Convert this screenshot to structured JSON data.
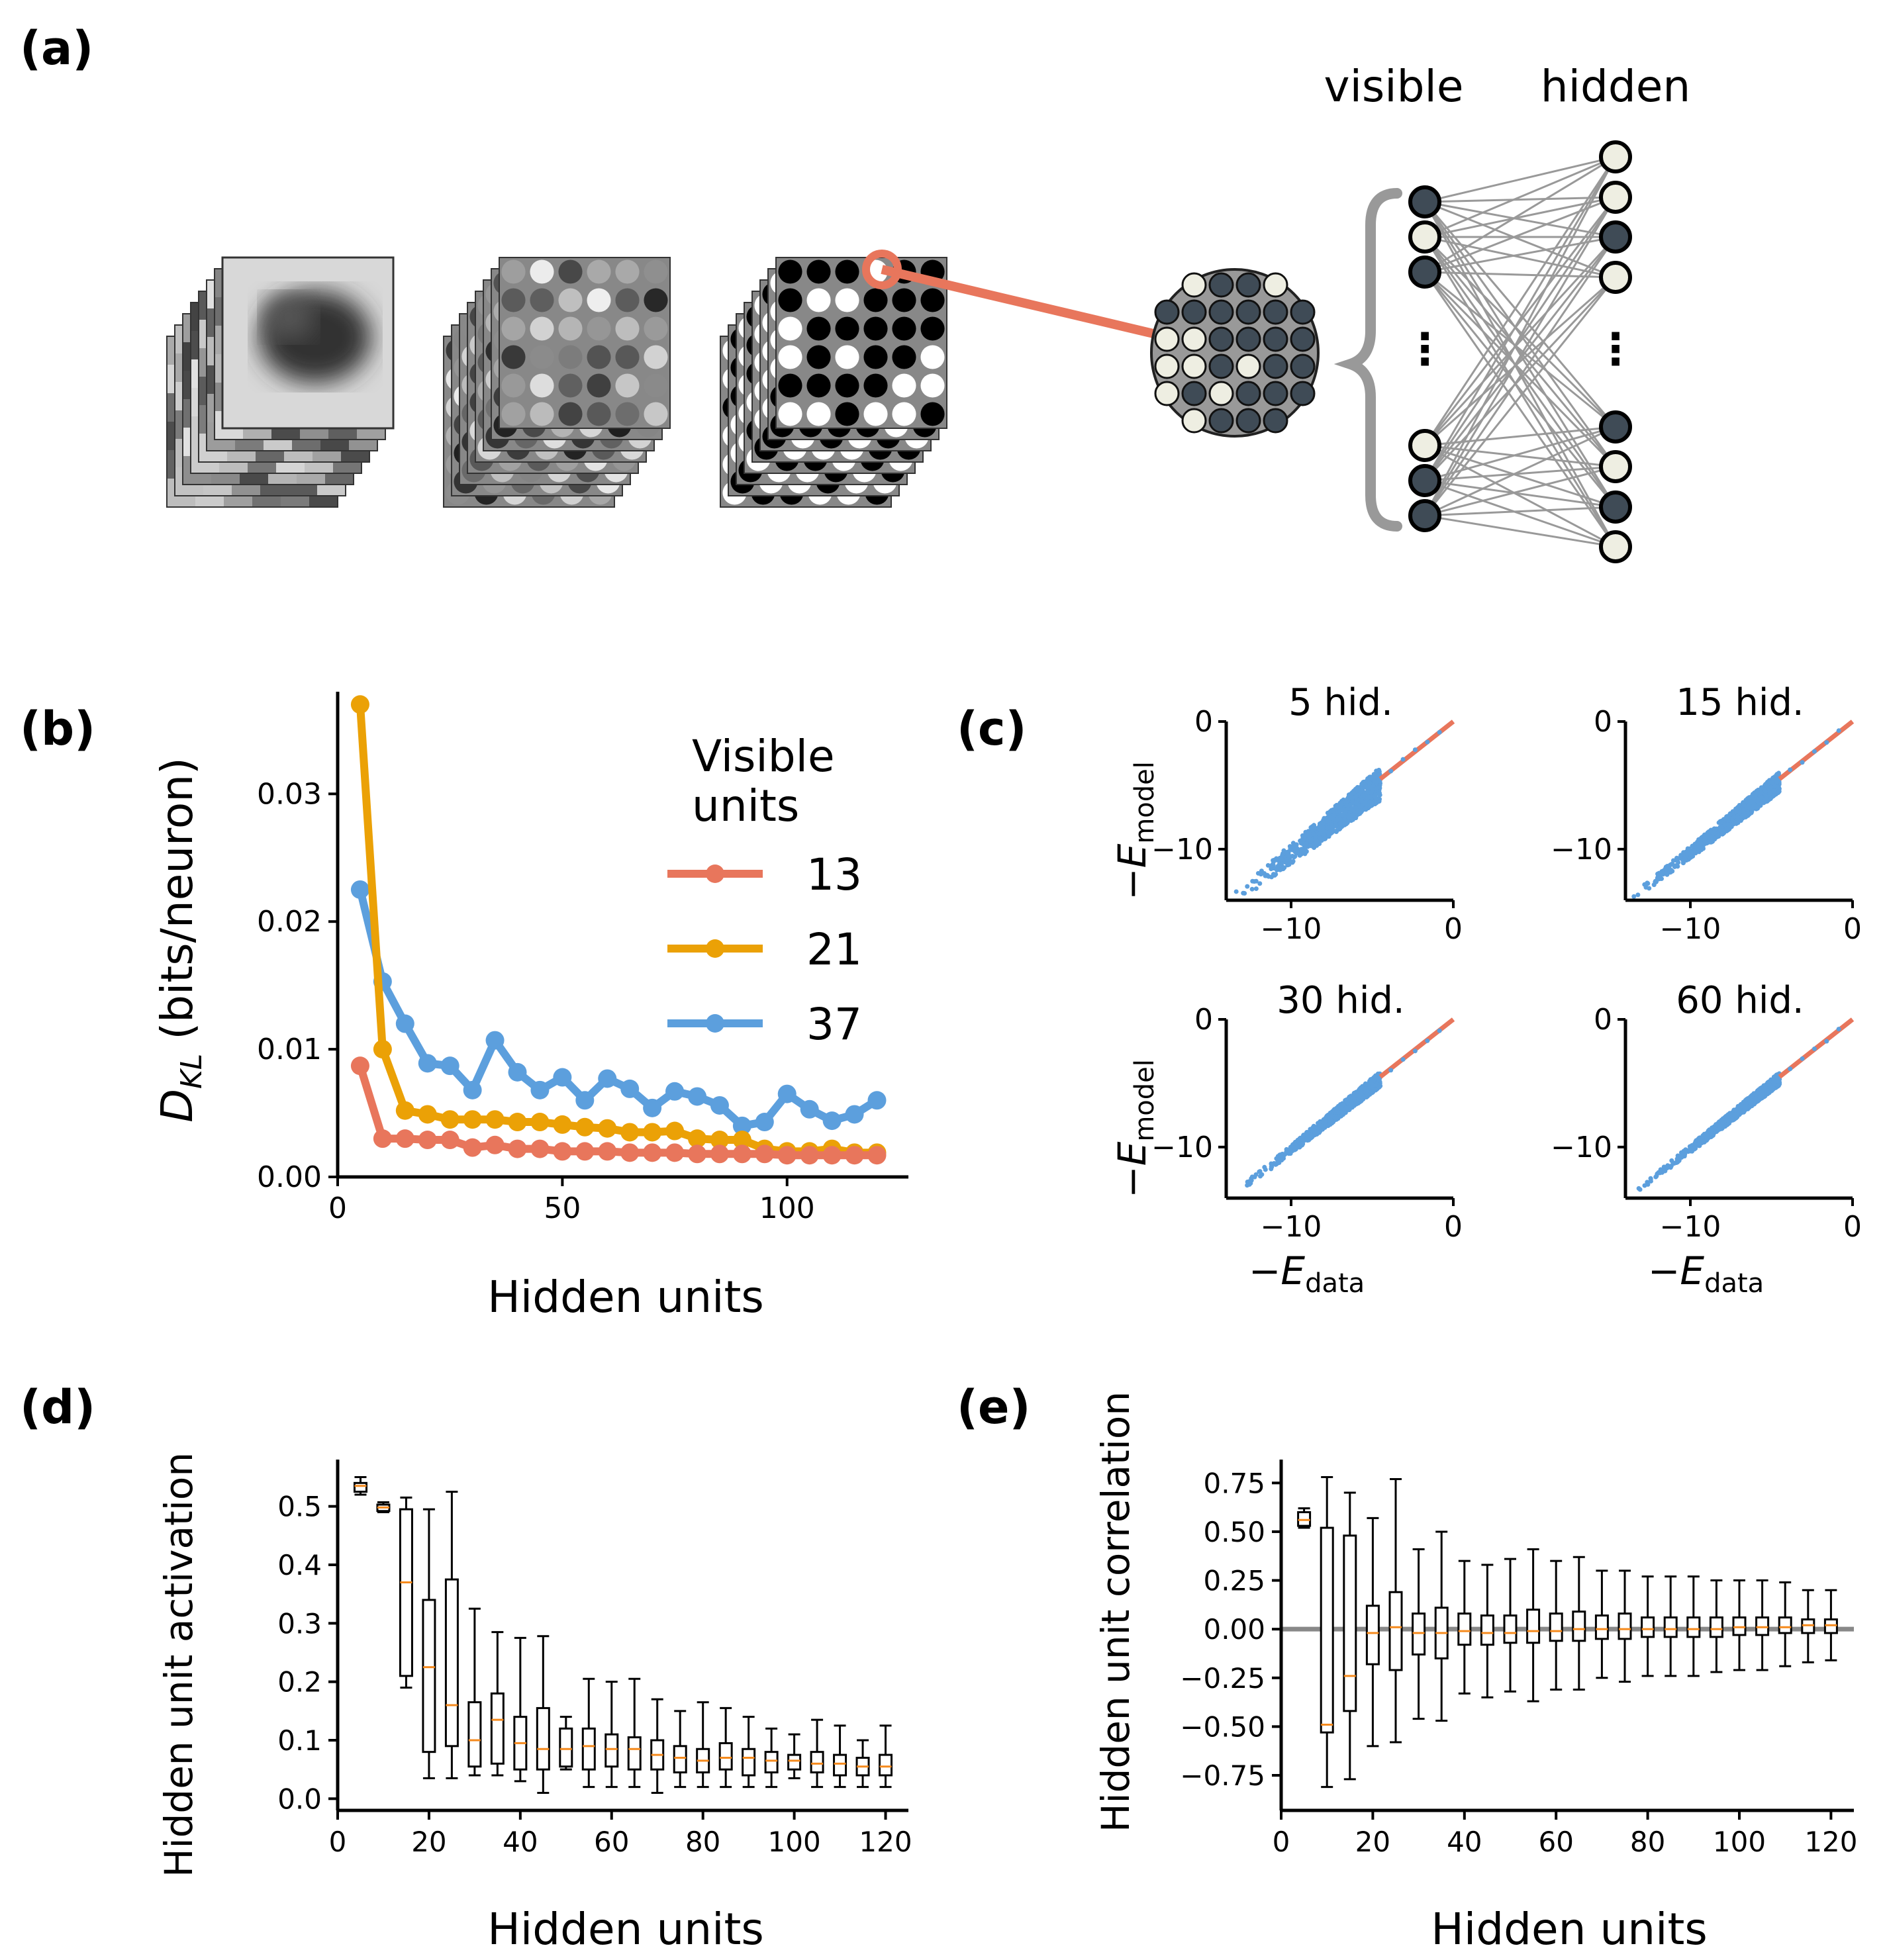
{
  "colors": {
    "red": "#e8765c",
    "orange": "#eba106",
    "blue": "#5c9fdd",
    "dark_unit": "#3f4b56",
    "light_unit": "#eeeee2",
    "grey_line": "#999999",
    "median": "#f58a1d"
  },
  "panel_a": {
    "label": "(a)",
    "visible_label": "visible",
    "hidden_label": "hidden",
    "dots": "⋮",
    "visible_units": [
      1,
      0,
      1,
      0,
      1,
      1
    ],
    "hidden_units": [
      0,
      0,
      1,
      0,
      1,
      0,
      1,
      0
    ],
    "patch_grid": [
      [
        null,
        0,
        1,
        1,
        0,
        null
      ],
      [
        1,
        1,
        1,
        1,
        1,
        1
      ],
      [
        0,
        0,
        1,
        1,
        1,
        1
      ],
      [
        0,
        0,
        1,
        0,
        1,
        1
      ],
      [
        0,
        1,
        0,
        1,
        1,
        1
      ],
      [
        null,
        0,
        1,
        1,
        1,
        null
      ]
    ]
  },
  "panel_b": {
    "label": "(b)",
    "chart_data": {
      "type": "line",
      "xlabel": "Hidden units",
      "ylabel_main": "D",
      "ylabel_sub": "KL",
      "ylabel_rest": " (bits/neuron)",
      "x": [
        5,
        10,
        15,
        20,
        25,
        30,
        35,
        40,
        45,
        50,
        55,
        60,
        65,
        70,
        75,
        80,
        85,
        90,
        95,
        100,
        105,
        110,
        115,
        120
      ],
      "series": [
        {
          "name": "13",
          "color": "#e8765c",
          "values": [
            0.0087,
            0.003,
            0.003,
            0.0029,
            0.0029,
            0.0023,
            0.0025,
            0.0022,
            0.0022,
            0.002,
            0.002,
            0.002,
            0.0019,
            0.0019,
            0.0019,
            0.0018,
            0.0018,
            0.0018,
            0.0018,
            0.0017,
            0.0017,
            0.0017,
            0.0017,
            0.0017
          ]
        },
        {
          "name": "21",
          "color": "#eba106",
          "values": [
            0.037,
            0.01,
            0.0052,
            0.0049,
            0.0045,
            0.0045,
            0.0045,
            0.0043,
            0.0043,
            0.0041,
            0.0039,
            0.0038,
            0.0035,
            0.0035,
            0.0036,
            0.003,
            0.0029,
            0.0029,
            0.0022,
            0.002,
            0.002,
            0.0022,
            0.0019,
            0.0019
          ]
        },
        {
          "name": "37",
          "color": "#5c9fdd",
          "values": [
            0.0225,
            0.0153,
            0.012,
            0.0089,
            0.0087,
            0.0068,
            0.0107,
            0.0082,
            0.0068,
            0.0078,
            0.006,
            0.0077,
            0.0069,
            0.0054,
            0.0067,
            0.0063,
            0.0056,
            0.004,
            0.0043,
            0.0065,
            0.0053,
            0.0044,
            0.0049,
            0.006
          ]
        }
      ],
      "xlim": [
        0,
        127
      ],
      "ylim": [
        0,
        0.038
      ],
      "xticks": [
        0,
        50,
        100
      ],
      "yticks": [
        0.0,
        0.01,
        0.02,
        0.03
      ],
      "ytick_labels": [
        "0.00",
        "0.01",
        "0.02",
        "0.03"
      ],
      "xtick_labels": [
        "0",
        "50",
        "100"
      ],
      "legend": {
        "title_line1": "Visible",
        "title_line2": "units",
        "placement": "top-right"
      }
    }
  },
  "panel_c": {
    "label": "(c)",
    "chart_data": {
      "type": "scatter",
      "xlabel_main": "−E",
      "xlabel_sub": "data",
      "ylabel_main": "−E",
      "ylabel_sub": "model",
      "xlim": [
        -14,
        0
      ],
      "ylim": [
        -14,
        0
      ],
      "xtick_labels": [
        "−10",
        "0"
      ],
      "ytick_labels": [
        "−10",
        "0"
      ],
      "panels": [
        {
          "title": "5 hid.",
          "spread": 1.3
        },
        {
          "title": "15 hid.",
          "spread": 0.8
        },
        {
          "title": "30 hid.",
          "spread": 0.6
        },
        {
          "title": "60 hid.",
          "spread": 0.5
        }
      ]
    }
  },
  "panel_d": {
    "label": "(d)",
    "chart_data": {
      "type": "box",
      "xlabel": "Hidden units",
      "ylabel": "Hidden unit activation",
      "xlim": [
        0,
        125
      ],
      "ylim": [
        -0.02,
        0.58
      ],
      "xticks": [
        0,
        20,
        40,
        60,
        80,
        100,
        120
      ],
      "xtick_labels": [
        "0",
        "20",
        "40",
        "60",
        "80",
        "100",
        "120"
      ],
      "yticks": [
        0.0,
        0.1,
        0.2,
        0.3,
        0.4,
        0.5
      ],
      "ytick_labels": [
        "0.0",
        "0.1",
        "0.2",
        "0.3",
        "0.4",
        "0.5"
      ],
      "boxes": [
        {
          "x": 5,
          "wlo": 0.52,
          "q1": 0.525,
          "med": 0.535,
          "q3": 0.54,
          "whi": 0.55
        },
        {
          "x": 10,
          "wlo": 0.49,
          "q1": 0.492,
          "med": 0.498,
          "q3": 0.503,
          "whi": 0.507
        },
        {
          "x": 15,
          "wlo": 0.19,
          "q1": 0.21,
          "med": 0.37,
          "q3": 0.495,
          "whi": 0.515
        },
        {
          "x": 20,
          "wlo": 0.035,
          "q1": 0.08,
          "med": 0.225,
          "q3": 0.34,
          "whi": 0.495
        },
        {
          "x": 25,
          "wlo": 0.035,
          "q1": 0.09,
          "med": 0.16,
          "q3": 0.375,
          "whi": 0.525
        },
        {
          "x": 30,
          "wlo": 0.04,
          "q1": 0.055,
          "med": 0.1,
          "q3": 0.165,
          "whi": 0.325
        },
        {
          "x": 35,
          "wlo": 0.04,
          "q1": 0.06,
          "med": 0.135,
          "q3": 0.18,
          "whi": 0.285
        },
        {
          "x": 40,
          "wlo": 0.03,
          "q1": 0.05,
          "med": 0.095,
          "q3": 0.14,
          "whi": 0.275
        },
        {
          "x": 45,
          "wlo": 0.01,
          "q1": 0.05,
          "med": 0.085,
          "q3": 0.155,
          "whi": 0.278
        },
        {
          "x": 50,
          "wlo": 0.05,
          "q1": 0.055,
          "med": 0.085,
          "q3": 0.12,
          "whi": 0.14
        },
        {
          "x": 55,
          "wlo": 0.02,
          "q1": 0.05,
          "med": 0.09,
          "q3": 0.12,
          "whi": 0.205
        },
        {
          "x": 60,
          "wlo": 0.02,
          "q1": 0.055,
          "med": 0.085,
          "q3": 0.11,
          "whi": 0.2
        },
        {
          "x": 65,
          "wlo": 0.02,
          "q1": 0.05,
          "med": 0.085,
          "q3": 0.105,
          "whi": 0.205
        },
        {
          "x": 70,
          "wlo": 0.01,
          "q1": 0.05,
          "med": 0.075,
          "q3": 0.1,
          "whi": 0.17
        },
        {
          "x": 75,
          "wlo": 0.02,
          "q1": 0.045,
          "med": 0.07,
          "q3": 0.09,
          "whi": 0.15
        },
        {
          "x": 80,
          "wlo": 0.02,
          "q1": 0.045,
          "med": 0.065,
          "q3": 0.085,
          "whi": 0.165
        },
        {
          "x": 85,
          "wlo": 0.02,
          "q1": 0.05,
          "med": 0.07,
          "q3": 0.095,
          "whi": 0.155
        },
        {
          "x": 90,
          "wlo": 0.02,
          "q1": 0.04,
          "med": 0.07,
          "q3": 0.085,
          "whi": 0.14
        },
        {
          "x": 95,
          "wlo": 0.02,
          "q1": 0.045,
          "med": 0.065,
          "q3": 0.08,
          "whi": 0.12
        },
        {
          "x": 100,
          "wlo": 0.035,
          "q1": 0.05,
          "med": 0.065,
          "q3": 0.075,
          "whi": 0.11
        },
        {
          "x": 105,
          "wlo": 0.02,
          "q1": 0.045,
          "med": 0.06,
          "q3": 0.08,
          "whi": 0.135
        },
        {
          "x": 110,
          "wlo": 0.02,
          "q1": 0.04,
          "med": 0.06,
          "q3": 0.075,
          "whi": 0.125
        },
        {
          "x": 115,
          "wlo": 0.02,
          "q1": 0.04,
          "med": 0.055,
          "q3": 0.07,
          "whi": 0.1
        },
        {
          "x": 120,
          "wlo": 0.02,
          "q1": 0.04,
          "med": 0.055,
          "q3": 0.075,
          "whi": 0.125
        }
      ]
    }
  },
  "panel_e": {
    "label": "(e)",
    "chart_data": {
      "type": "box",
      "xlabel": "Hidden units",
      "ylabel": "Hidden unit correlation",
      "xlim": [
        0,
        125
      ],
      "ylim": [
        -0.93,
        0.87
      ],
      "xticks": [
        0,
        20,
        40,
        60,
        80,
        100,
        120
      ],
      "xtick_labels": [
        "0",
        "20",
        "40",
        "60",
        "80",
        "100",
        "120"
      ],
      "yticks": [
        -0.75,
        -0.5,
        -0.25,
        0.0,
        0.25,
        0.5,
        0.75
      ],
      "ytick_labels": [
        "−0.75",
        "−0.50",
        "−0.25",
        "0.00",
        "0.25",
        "0.50",
        "0.75"
      ],
      "zero_line": 0.0,
      "boxes": [
        {
          "x": 5,
          "wlo": 0.52,
          "q1": 0.53,
          "med": 0.56,
          "q3": 0.6,
          "whi": 0.62
        },
        {
          "x": 10,
          "wlo": -0.81,
          "q1": -0.53,
          "med": -0.49,
          "q3": 0.52,
          "whi": 0.78
        },
        {
          "x": 15,
          "wlo": -0.77,
          "q1": -0.42,
          "med": -0.24,
          "q3": 0.48,
          "whi": 0.7
        },
        {
          "x": 20,
          "wlo": -0.6,
          "q1": -0.18,
          "med": -0.02,
          "q3": 0.12,
          "whi": 0.57
        },
        {
          "x": 25,
          "wlo": -0.58,
          "q1": -0.21,
          "med": 0.01,
          "q3": 0.19,
          "whi": 0.77
        },
        {
          "x": 30,
          "wlo": -0.46,
          "q1": -0.13,
          "med": -0.02,
          "q3": 0.08,
          "whi": 0.41
        },
        {
          "x": 35,
          "wlo": -0.47,
          "q1": -0.15,
          "med": -0.02,
          "q3": 0.11,
          "whi": 0.5
        },
        {
          "x": 40,
          "wlo": -0.33,
          "q1": -0.08,
          "med": -0.01,
          "q3": 0.08,
          "whi": 0.35
        },
        {
          "x": 45,
          "wlo": -0.35,
          "q1": -0.08,
          "med": -0.02,
          "q3": 0.07,
          "whi": 0.33
        },
        {
          "x": 50,
          "wlo": -0.32,
          "q1": -0.07,
          "med": -0.02,
          "q3": 0.07,
          "whi": 0.36
        },
        {
          "x": 55,
          "wlo": -0.37,
          "q1": -0.07,
          "med": -0.01,
          "q3": 0.1,
          "whi": 0.41
        },
        {
          "x": 60,
          "wlo": -0.31,
          "q1": -0.06,
          "med": -0.01,
          "q3": 0.08,
          "whi": 0.35
        },
        {
          "x": 65,
          "wlo": -0.31,
          "q1": -0.06,
          "med": 0.0,
          "q3": 0.09,
          "whi": 0.37
        },
        {
          "x": 70,
          "wlo": -0.25,
          "q1": -0.05,
          "med": 0.0,
          "q3": 0.07,
          "whi": 0.3
        },
        {
          "x": 75,
          "wlo": -0.27,
          "q1": -0.05,
          "med": 0.0,
          "q3": 0.08,
          "whi": 0.3
        },
        {
          "x": 80,
          "wlo": -0.24,
          "q1": -0.04,
          "med": 0.0,
          "q3": 0.06,
          "whi": 0.27
        },
        {
          "x": 85,
          "wlo": -0.24,
          "q1": -0.04,
          "med": 0.0,
          "q3": 0.06,
          "whi": 0.27
        },
        {
          "x": 90,
          "wlo": -0.24,
          "q1": -0.04,
          "med": 0.0,
          "q3": 0.06,
          "whi": 0.27
        },
        {
          "x": 95,
          "wlo": -0.22,
          "q1": -0.04,
          "med": 0.0,
          "q3": 0.06,
          "whi": 0.25
        },
        {
          "x": 100,
          "wlo": -0.21,
          "q1": -0.03,
          "med": 0.01,
          "q3": 0.06,
          "whi": 0.25
        },
        {
          "x": 105,
          "wlo": -0.21,
          "q1": -0.03,
          "med": 0.01,
          "q3": 0.06,
          "whi": 0.25
        },
        {
          "x": 110,
          "wlo": -0.19,
          "q1": -0.02,
          "med": 0.01,
          "q3": 0.06,
          "whi": 0.24
        },
        {
          "x": 115,
          "wlo": -0.17,
          "q1": -0.02,
          "med": 0.02,
          "q3": 0.05,
          "whi": 0.2
        },
        {
          "x": 120,
          "wlo": -0.16,
          "q1": -0.02,
          "med": 0.02,
          "q3": 0.05,
          "whi": 0.2
        }
      ]
    }
  }
}
